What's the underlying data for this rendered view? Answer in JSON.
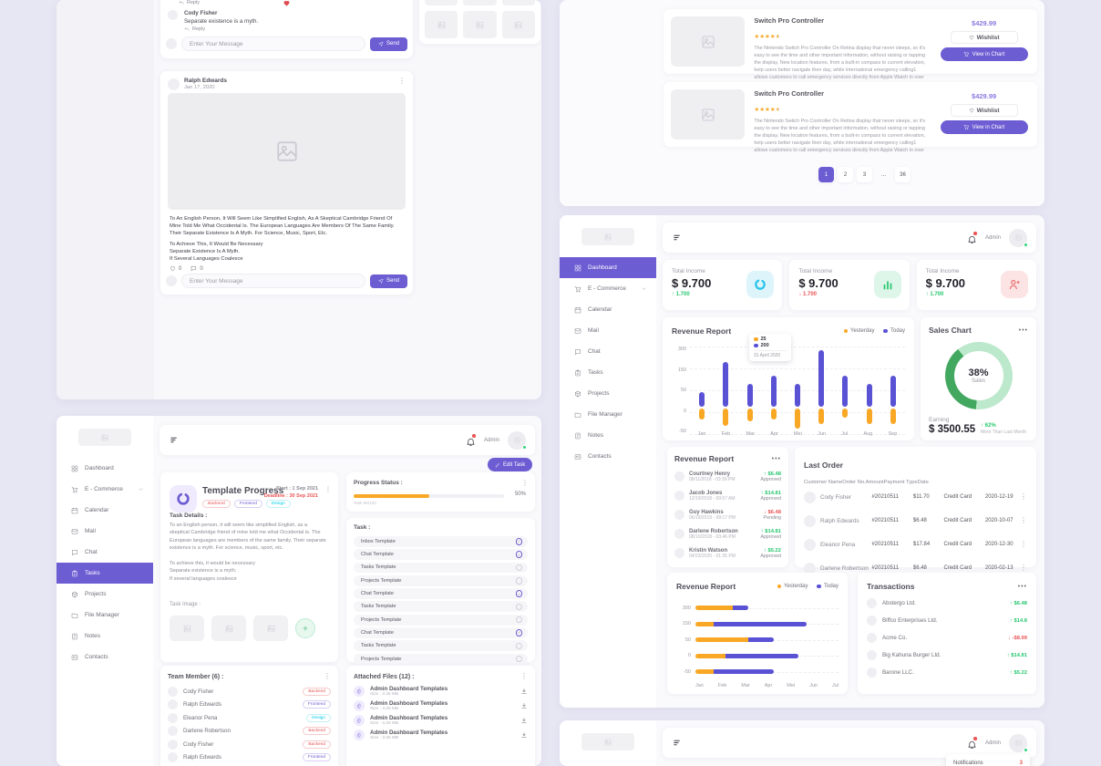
{
  "ui": {
    "admin_label": "Admin",
    "send_label": "Send",
    "message_placeholder": "Enter Your Message",
    "notifications": {
      "label": "Notifications",
      "count": "3"
    },
    "glyphs": {
      "star": "★",
      "kebab": "⋮",
      "dots": "•••"
    }
  },
  "chat_panel": {
    "top_card": {
      "reply_top": "Reply",
      "author": "Cody Fisher",
      "message": "Separate existence is a myth.",
      "reply_label": "Reply"
    },
    "post_card": {
      "author": "Ralph Edwards",
      "date": "Jan 17, 2020",
      "paragraph": "To An English Person, It Will Seem Like Simplified English, As A Skeptical Cambridge Friend Of Mine Told Me What Occidental Is. The European Languages Are Members Of The Same Family. Their Separate Existence Is A Myth. For Science, Music, Sport, Etc.",
      "lines": [
        "To Achieve This, It Would Be Necessary",
        "Separate Existence Is A Myth.",
        "If Several Languages Coalesce"
      ],
      "like_count": "0",
      "comment_count": "0"
    }
  },
  "products_panel": {
    "items": [
      {
        "name": "Switch Pro Controller",
        "price": "$429.99",
        "wishlist_label": "Wishlist",
        "view_label": "View in Chart",
        "description": "The Nintendo Switch Pro Controller On Retina display that never sleeps, so it's easy to see the time and other important information, without raising or tapping the display. New location features, from a built-in compass to current elevation, help users better navigate their day, while international emergency calling1 allows customers to call emergency services directly from Apple Watch in over"
      },
      {
        "name": "Switch Pro Controller",
        "price": "$429.99",
        "wishlist_label": "Wishlist",
        "view_label": "View in Chart",
        "description": "The Nintendo Switch Pro Controller On Retina display that never sleeps, so it's easy to see the time and other important information, without raising or tapping the display. New location features, from a built-in compass to current elevation, help users better navigate their day, while international emergency calling1 allows customers to call emergency services directly from Apple Watch in over"
      }
    ],
    "pagination": [
      "1",
      "2",
      "3",
      "...",
      "36"
    ],
    "pagination_active": "1"
  },
  "sidebar": {
    "items": [
      {
        "label": "Dashboard",
        "icon": "grid",
        "chev": "no-chev"
      },
      {
        "label": "E - Commerce",
        "icon": "cart",
        "chev": "has-chev"
      },
      {
        "label": "Calendar",
        "icon": "calendar",
        "chev": "no-chev"
      },
      {
        "label": "Mail",
        "icon": "mail",
        "chev": "no-chev"
      },
      {
        "label": "Chat",
        "icon": "chat",
        "chev": "no-chev"
      },
      {
        "label": "Tasks",
        "icon": "tasks",
        "chev": "no-chev"
      },
      {
        "label": "Projects",
        "icon": "projects",
        "chev": "no-chev"
      },
      {
        "label": "File Manager",
        "icon": "folder",
        "chev": "no-chev"
      },
      {
        "label": "Notes",
        "icon": "notes",
        "chev": "no-chev"
      },
      {
        "label": "Contacts",
        "icon": "contacts",
        "chev": "no-chev"
      }
    ]
  },
  "dashboard_panel": {
    "income_cards": [
      {
        "label": "Total Income",
        "value": "$ 9.700",
        "delta": "↑ 1.700",
        "direction": "up",
        "icon": "ring",
        "tone": "tone-cyan"
      },
      {
        "label": "Total Income",
        "value": "$ 9.700",
        "delta": "↓ 1.700",
        "direction": "down",
        "icon": "barchart",
        "tone": "tone-green"
      },
      {
        "label": "Total Income",
        "value": "$ 9.700",
        "delta": "↑ 1.700",
        "direction": "up",
        "icon": "personplus",
        "tone": "tone-red"
      }
    ],
    "sales_chart": {
      "title": "Sales Chart",
      "percent": "38%",
      "label": "Sales",
      "earning_label": "Earning",
      "earning": "$ 3500.55",
      "delta": "↑ 62%",
      "delta_note": "More Than Last Month"
    },
    "revenue_list": {
      "title": "Revenue Report",
      "rows": [
        {
          "name": "Courtney Henry",
          "date": "08/11/2018 - 03:39 PM",
          "amount": "↑ $6.48",
          "status": "Approved",
          "dir": "up"
        },
        {
          "name": "Jacob Jones",
          "date": "12/19/2018 - 09:57 AM",
          "amount": "↑ $14.81",
          "status": "Approved",
          "dir": "up"
        },
        {
          "name": "Guy Hawkins",
          "date": "06/19/2019 - 08:17 PM",
          "amount": "↓ $6.48",
          "status": "Pending",
          "dir": "down"
        },
        {
          "name": "Darlene Robertson",
          "date": "08/10/2018 - 03:46 PM",
          "amount": "↑ $14.81",
          "status": "Approved",
          "dir": "up"
        },
        {
          "name": "Kristin Watson",
          "date": "04/23/2020 - 01:35 PM",
          "amount": "↑ $5.22",
          "status": "Approved",
          "dir": "up"
        }
      ]
    },
    "last_order": {
      "title": "Last Order",
      "columns": [
        "Customer Name",
        "Order No.",
        "Amount",
        "Payment Type",
        "Date"
      ],
      "rows": [
        {
          "name": "Cody Fisher",
          "order": "#20210511",
          "amount": "$11.70",
          "payment": "Credit Card",
          "date": "2020-12-19"
        },
        {
          "name": "Ralph Edwards",
          "order": "#20210511",
          "amount": "$6.48",
          "payment": "Credit Card",
          "date": "2020-10-07"
        },
        {
          "name": "Eleanor Pena",
          "order": "#20210511",
          "amount": "$17.84",
          "payment": "Credit Card",
          "date": "2020-12-30"
        },
        {
          "name": "Darlene Robertson",
          "order": "#20210511",
          "amount": "$6.48",
          "payment": "Credit Card",
          "date": "2020-02-13"
        }
      ]
    },
    "transactions": {
      "title": "Transactions",
      "rows": [
        {
          "name": "Abstergo Ltd.",
          "amount": "↑ $6.48",
          "dir": "up"
        },
        {
          "name": "Biffco Enterprises Ltd.",
          "amount": "↑ $14.8",
          "dir": "up"
        },
        {
          "name": "Acme Co.",
          "amount": "↓ -$8.99",
          "dir": "down"
        },
        {
          "name": "Big Kahuna Burger Ltd.",
          "amount": "↑ $14.81",
          "dir": "up"
        },
        {
          "name": "Barone LLC.",
          "amount": "↑ $5.22",
          "dir": "up"
        }
      ]
    }
  },
  "tasks_panel": {
    "edit_task_label": "Edit Task",
    "task_card": {
      "title": "Template Progress",
      "badges": [
        {
          "label": "Backend",
          "color": "red"
        },
        {
          "label": "Frontend",
          "color": "purple"
        },
        {
          "label": "Design",
          "color": "cyan"
        }
      ],
      "start": "Start : 1 Sep 2021",
      "deadline": "Deadline : 30 Sep 2021",
      "details_label": "Task Details :",
      "details_p1": "To an English person, it will seem like simplified English, as a skeptical Cambridge friend of mine told me what Occidental is. The European languages are members of the same family. Their separate existence is a myth. For science, music, sport, etc.",
      "details_lines": [
        "To achieve this, it would be necessary",
        "Separate existence is a myth.",
        "If several languages coalesce"
      ],
      "image_label": "Task Image :"
    },
    "progress": {
      "label": "Progress Status :",
      "percent": "50%",
      "value": 50,
      "note": "Task 50/100"
    },
    "task_list": {
      "label": "Task :",
      "items": [
        {
          "label": "Inbox Template",
          "state": "checked"
        },
        {
          "label": "Chat Template",
          "state": "checked"
        },
        {
          "label": "Tasks Template",
          "state": "unchecked"
        },
        {
          "label": "Projects Template",
          "state": "unchecked"
        },
        {
          "label": "Chat Template",
          "state": "checked"
        },
        {
          "label": "Tasks Template",
          "state": "unchecked"
        },
        {
          "label": "Projects Template",
          "state": "unchecked"
        },
        {
          "label": "Chat Template",
          "state": "checked"
        },
        {
          "label": "Tasks Template",
          "state": "unchecked"
        },
        {
          "label": "Projects Template",
          "state": "unchecked"
        }
      ]
    },
    "team": {
      "title": "Team Member (6) :",
      "rows": [
        {
          "name": "Cody Fisher",
          "badge": "Backend",
          "color": "red"
        },
        {
          "name": "Ralph Edwards",
          "badge": "Frontend",
          "color": "purple"
        },
        {
          "name": "Eleanor Pena",
          "badge": "Design",
          "color": "cyan"
        },
        {
          "name": "Darlene Robertson",
          "badge": "Backend",
          "color": "red"
        },
        {
          "name": "Cody Fisher",
          "badge": "Backend",
          "color": "red"
        },
        {
          "name": "Ralph Edwards",
          "badge": "Frontend",
          "color": "purple"
        }
      ]
    },
    "files": {
      "title": "Attached Files (12) :",
      "rows": [
        {
          "name": "Admin Dashboard Templates",
          "size": "Size : 3.25 MB"
        },
        {
          "name": "Admin Dashboard Templates",
          "size": "Size : 3.25 MB"
        },
        {
          "name": "Admin Dashboard Templates",
          "size": "Size : 3.25 MB"
        },
        {
          "name": "Admin Dashboard Templates",
          "size": "Size : 3.25 MB"
        }
      ]
    }
  },
  "chart_data": [
    {
      "id": "revenue-vertical",
      "type": "bar",
      "title": "Revenue Report",
      "categories": [
        "Jan",
        "Feb",
        "Mar",
        "Apr",
        "Mei",
        "Jun",
        "Jul",
        "Aug",
        "Sep"
      ],
      "series": [
        {
          "name": "Yesterday",
          "color": "#F9A826",
          "values": [
            -25,
            -40,
            -30,
            -25,
            -45,
            -35,
            -20,
            -35,
            -35
          ]
        },
        {
          "name": "Today",
          "color": "#5A52D5",
          "values": [
            70,
            215,
            110,
            150,
            110,
            270,
            150,
            110,
            150
          ]
        }
      ],
      "yticks": [
        "300",
        "150",
        "50",
        "0",
        "-50"
      ],
      "legend_position": "top-right",
      "grid": "dashed",
      "tooltip": {
        "yesterday": "25",
        "today": "200",
        "date": "31 April 2020"
      }
    },
    {
      "id": "sales-donut",
      "type": "pie",
      "title": "Sales Chart",
      "center_value": "38%",
      "center_label": "Sales",
      "slices": [
        {
          "label": "Sales",
          "value": 38,
          "color": "#43A85F"
        },
        {
          "label": "Remaining",
          "value": 62,
          "color": "#BCE8CC"
        }
      ]
    },
    {
      "id": "revenue-horizontal",
      "type": "bar",
      "orientation": "horizontal",
      "title": "Revenue Report",
      "row_labels": [
        "300",
        "150",
        "50",
        "0",
        "-50"
      ],
      "x_labels": [
        "Jan",
        "Feb",
        "Mar",
        "Apr",
        "Mei",
        "Jun",
        "Jul"
      ],
      "series": [
        {
          "name": "Yesterday",
          "color": "#F9A826",
          "widths_pct": [
            26,
            13,
            37,
            21,
            13
          ]
        },
        {
          "name": "Today",
          "color": "#5A52D5",
          "widths_pct": [
            11,
            65,
            18,
            51,
            42
          ]
        }
      ],
      "legend_position": "top-right"
    }
  ]
}
